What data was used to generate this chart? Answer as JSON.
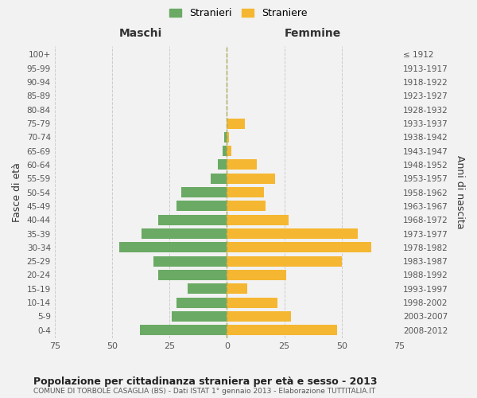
{
  "age_groups": [
    "100+",
    "95-99",
    "90-94",
    "85-89",
    "80-84",
    "75-79",
    "70-74",
    "65-69",
    "60-64",
    "55-59",
    "50-54",
    "45-49",
    "40-44",
    "35-39",
    "30-34",
    "25-29",
    "20-24",
    "15-19",
    "10-14",
    "5-9",
    "0-4"
  ],
  "birth_years": [
    "≤ 1912",
    "1913-1917",
    "1918-1922",
    "1923-1927",
    "1928-1932",
    "1933-1937",
    "1938-1942",
    "1943-1947",
    "1948-1952",
    "1953-1957",
    "1958-1962",
    "1963-1967",
    "1968-1972",
    "1973-1977",
    "1978-1982",
    "1983-1987",
    "1988-1992",
    "1993-1997",
    "1998-2002",
    "2003-2007",
    "2008-2012"
  ],
  "maschi": [
    0,
    0,
    0,
    0,
    0,
    0,
    1,
    2,
    4,
    7,
    20,
    22,
    30,
    37,
    47,
    32,
    30,
    17,
    22,
    24,
    38
  ],
  "femmine": [
    0,
    0,
    0,
    0,
    0,
    8,
    1,
    2,
    13,
    21,
    16,
    17,
    27,
    57,
    63,
    50,
    26,
    9,
    22,
    28,
    48
  ],
  "maschi_color": "#6aaa64",
  "femmine_color": "#f5b731",
  "background_color": "#f2f2f2",
  "title": "Popolazione per cittadinanza straniera per età e sesso - 2013",
  "subtitle": "COMUNE DI TORBOLE CASAGLIA (BS) - Dati ISTAT 1° gennaio 2013 - Elaborazione TUTTITALIA.IT",
  "xlabel_left": "Maschi",
  "xlabel_right": "Femmine",
  "ylabel_left": "Fasce di età",
  "ylabel_right": "Anni di nascita",
  "legend_stranieri": "Stranieri",
  "legend_straniere": "Straniere",
  "xlim": 75
}
